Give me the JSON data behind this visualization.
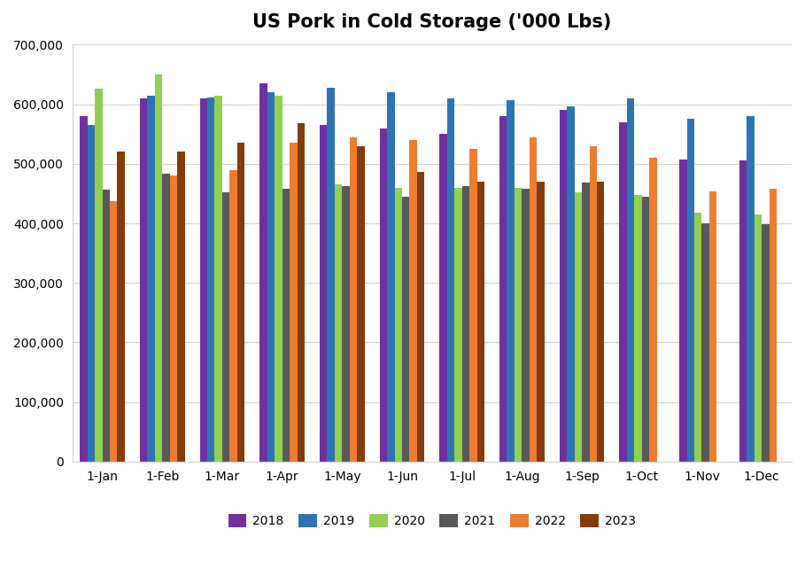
{
  "title": "US Pork in Cold Storage ('000 Lbs)",
  "months": [
    "1-Jan",
    "1-Feb",
    "1-Mar",
    "1-Apr",
    "1-May",
    "1-Jun",
    "1-Jul",
    "1-Aug",
    "1-Sep",
    "1-Oct",
    "1-Nov",
    "1-Dec"
  ],
  "series": {
    "2018": [
      580000,
      610000,
      610000,
      635000,
      565000,
      560000,
      550000,
      580000,
      590000,
      570000,
      507000,
      505000
    ],
    "2019": [
      565000,
      615000,
      612000,
      620000,
      628000,
      620000,
      610000,
      607000,
      597000,
      610000,
      575000,
      580000
    ],
    "2020": [
      627000,
      650000,
      614000,
      615000,
      465000,
      460000,
      460000,
      460000,
      452000,
      447000,
      418000,
      415000
    ],
    "2021": [
      457000,
      483000,
      452000,
      458000,
      462000,
      445000,
      462000,
      458000,
      468000,
      445000,
      400000,
      398000
    ],
    "2022": [
      437000,
      480000,
      490000,
      535000,
      545000,
      540000,
      525000,
      545000,
      530000,
      510000,
      453000,
      458000
    ],
    "2023": [
      520000,
      521000,
      535000,
      568000,
      530000,
      487000,
      470000,
      470000,
      470000,
      0,
      0,
      0
    ]
  },
  "colors": {
    "2018": "#7030a0",
    "2019": "#2e74b5",
    "2020": "#92d050",
    "2021": "#595959",
    "2022": "#ed7d31",
    "2023": "#843c0c"
  },
  "ylim": [
    0,
    700000
  ],
  "ytick_step": 100000,
  "figsize": [
    9.09,
    6.59
  ],
  "dpi": 100
}
